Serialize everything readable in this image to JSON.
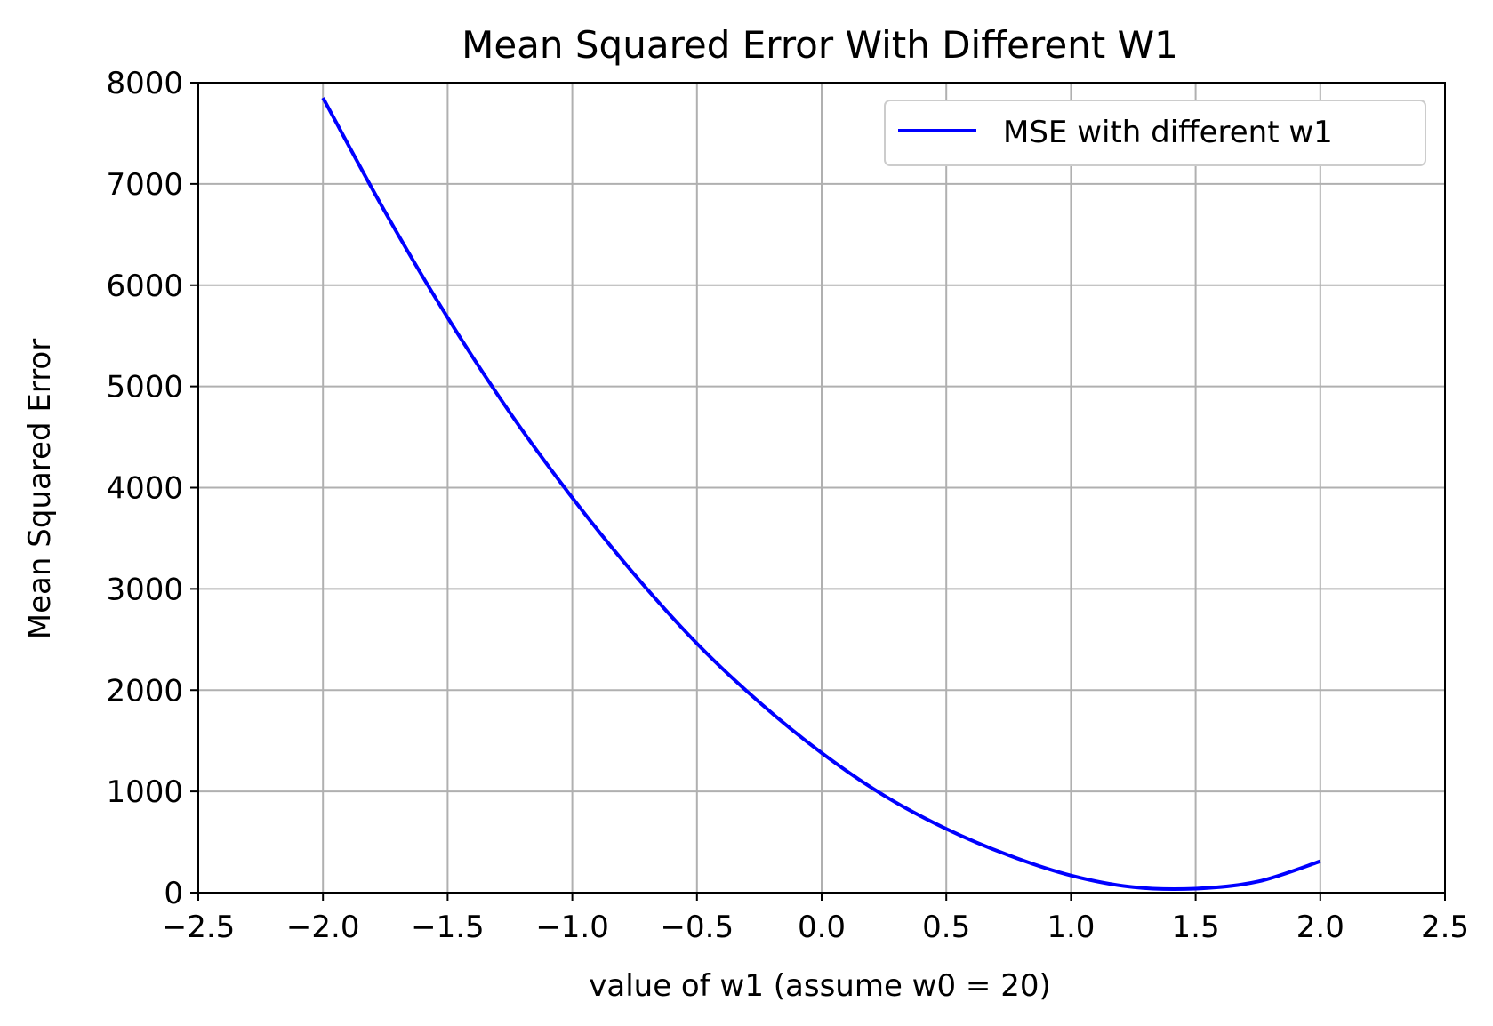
{
  "chart_data": {
    "type": "line",
    "title": "Mean Squared Error With Different W1",
    "xlabel": "value of w1 (assume w0 = 20)",
    "ylabel": "Mean Squared Error",
    "xlim": [
      -2.5,
      2.5
    ],
    "ylim": [
      0,
      8000
    ],
    "xticks": [
      -2.5,
      -2.0,
      -1.5,
      -1.0,
      -0.5,
      0.0,
      0.5,
      1.0,
      1.5,
      2.0,
      2.5
    ],
    "xtick_labels": [
      "−2.5",
      "−2.0",
      "−1.5",
      "−1.0",
      "−0.5",
      "0.0",
      "0.5",
      "1.0",
      "1.5",
      "2.0",
      "2.5"
    ],
    "yticks": [
      0,
      1000,
      2000,
      3000,
      4000,
      5000,
      6000,
      7000,
      8000
    ],
    "ytick_labels": [
      "0",
      "1000",
      "2000",
      "3000",
      "4000",
      "5000",
      "6000",
      "7000",
      "8000"
    ],
    "grid": true,
    "legend_position": "top-right",
    "series": [
      {
        "name": "MSE with different w1",
        "color": "#0000ff",
        "x": [
          -2.0,
          -1.75,
          -1.5,
          -1.25,
          -1.0,
          -0.75,
          -0.5,
          -0.25,
          0.0,
          0.25,
          0.5,
          0.75,
          1.0,
          1.25,
          1.5,
          1.75,
          2.0
        ],
        "y": [
          7850,
          6720,
          5680,
          4740,
          3900,
          3140,
          2460,
          1880,
          1380,
          960,
          630,
          370,
          170,
          55,
          40,
          110,
          310
        ]
      }
    ]
  }
}
